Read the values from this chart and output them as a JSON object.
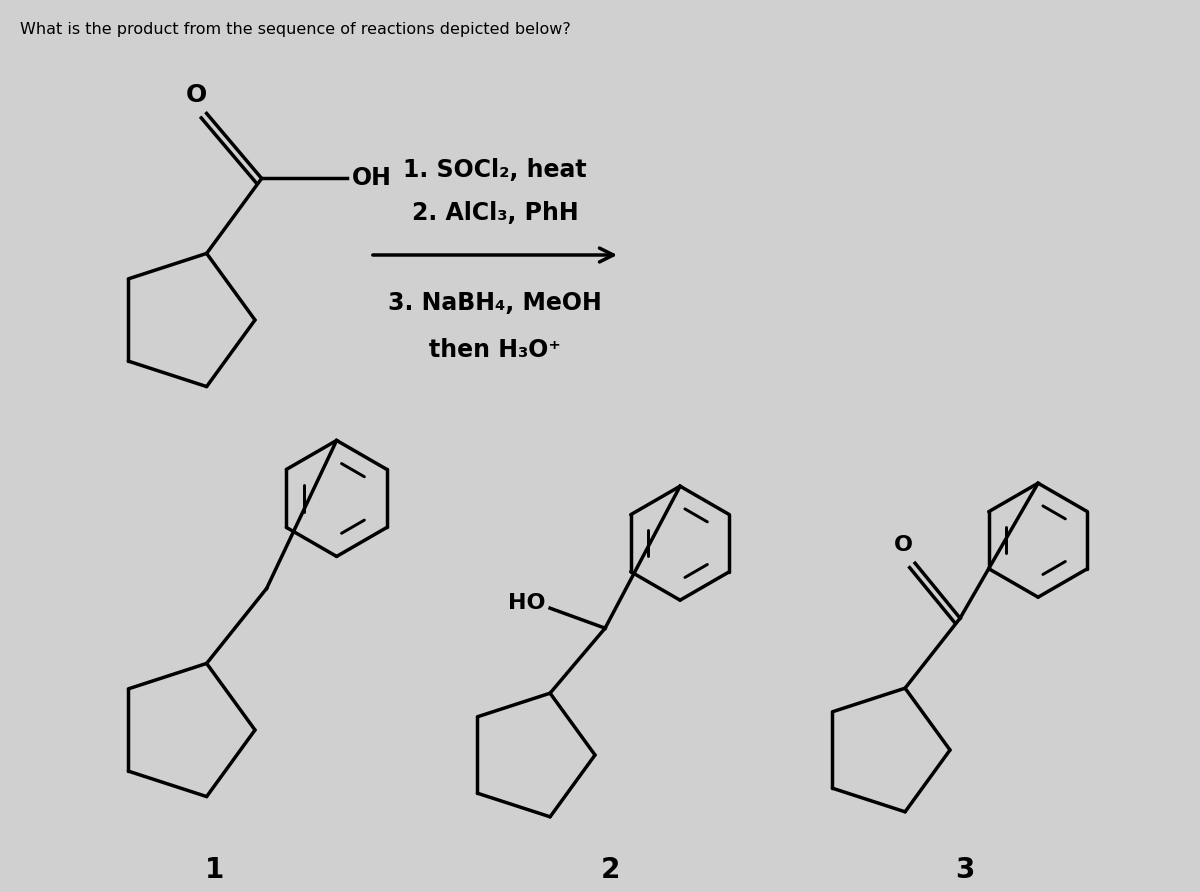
{
  "title": "What is the product from the sequence of reactions depicted below?",
  "background_color": "#d0d0d0",
  "text_color": "#000000",
  "reaction_line1": "1. SOCl₂, heat",
  "reaction_line2": "2. AlCl₃, PhH",
  "reaction_line3": "3. NaBH₄, MeOH",
  "reaction_line4": "then H₃O⁺",
  "label1": "1",
  "label2": "2",
  "label3": "3",
  "label_HO": "HO",
  "label_O": "O",
  "label_sm_O": "O",
  "label_sm_OH": "OH"
}
